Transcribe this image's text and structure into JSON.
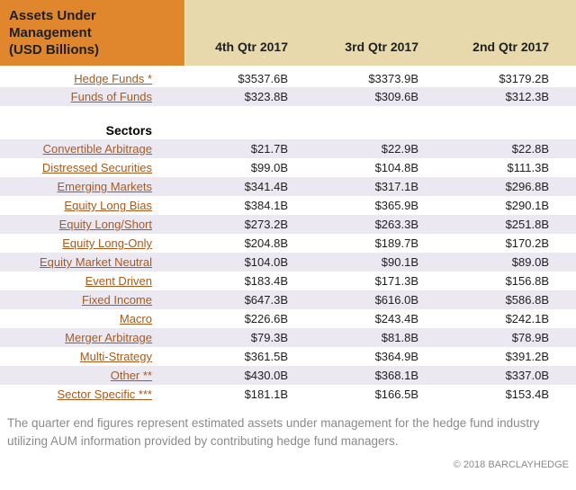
{
  "table": {
    "title": "Assets Under Management",
    "subtitle": "(USD Billions)",
    "columns": [
      "4th Qtr 2017",
      "3rd Qtr 2017",
      "2nd Qtr 2017"
    ],
    "rows": [
      {
        "type": "link",
        "label": "Hedge Funds *",
        "values": [
          "$3537.6B",
          "$3373.9B",
          "$3179.2B"
        ]
      },
      {
        "type": "link",
        "label": "Funds of Funds",
        "values": [
          "$323.8B",
          "$309.6B",
          "$312.3B"
        ]
      },
      {
        "type": "spacer"
      },
      {
        "type": "section",
        "label": "Sectors"
      },
      {
        "type": "link",
        "label": "Convertible Arbitrage",
        "values": [
          "$21.7B",
          "$22.9B",
          "$22.8B"
        ]
      },
      {
        "type": "link",
        "label": "Distressed Securities",
        "values": [
          "$99.0B",
          "$104.8B",
          "$111.3B"
        ]
      },
      {
        "type": "link",
        "label": "Emerging Markets",
        "values": [
          "$341.4B",
          "$317.1B",
          "$296.8B"
        ]
      },
      {
        "type": "link",
        "label": "Equity Long Bias",
        "values": [
          "$384.1B",
          "$365.9B",
          "$290.1B"
        ]
      },
      {
        "type": "link",
        "label": "Equity Long/Short",
        "values": [
          "$273.2B",
          "$263.3B",
          "$251.8B"
        ]
      },
      {
        "type": "link",
        "label": "Equity Long-Only",
        "values": [
          "$204.8B",
          "$189.7B",
          "$170.2B"
        ]
      },
      {
        "type": "link",
        "label": "Equity Market Neutral",
        "values": [
          "$104.0B",
          "$90.1B",
          "$89.0B"
        ]
      },
      {
        "type": "link",
        "label": "Event Driven",
        "values": [
          "$183.4B",
          "$171.3B",
          "$156.8B"
        ]
      },
      {
        "type": "link",
        "label": "Fixed Income",
        "values": [
          "$647.3B",
          "$616.0B",
          "$586.8B"
        ]
      },
      {
        "type": "link",
        "label": "Macro",
        "values": [
          "$226.6B",
          "$243.4B",
          "$242.1B"
        ]
      },
      {
        "type": "link",
        "label": "Merger Arbitrage",
        "values": [
          "$79.3B",
          "$81.8B",
          "$78.9B"
        ]
      },
      {
        "type": "link",
        "label": "Multi-Strategy",
        "values": [
          "$361.5B",
          "$364.9B",
          "$391.2B"
        ]
      },
      {
        "type": "link",
        "label": "Other **",
        "values": [
          "$430.0B",
          "$368.1B",
          "$337.0B"
        ]
      },
      {
        "type": "link",
        "label": "Sector Specific ***",
        "values": [
          "$181.1B",
          "$166.5B",
          "$153.4B"
        ]
      }
    ]
  },
  "footer": {
    "note": "The quarter end figures represent estimated assets under management for the hedge fund industry utilizing AUM information provided by contributing hedge fund managers.",
    "copyright": "© 2018 BARCLAYHEDGE"
  },
  "colors": {
    "header_orange": "#e0862d",
    "header_tan": "#e7d9ac",
    "row_stripe": "#ece8f1",
    "link": "#a85a1e",
    "footer_gray": "#8a8a8a"
  },
  "chart_data": {
    "type": "table",
    "title": "Assets Under Management (USD Billions)",
    "columns": [
      "4th Qtr 2017",
      "3rd Qtr 2017",
      "2nd Qtr 2017"
    ],
    "categories": [
      "Hedge Funds",
      "Funds of Funds",
      "Convertible Arbitrage",
      "Distressed Securities",
      "Emerging Markets",
      "Equity Long Bias",
      "Equity Long/Short",
      "Equity Long-Only",
      "Equity Market Neutral",
      "Event Driven",
      "Fixed Income",
      "Macro",
      "Merger Arbitrage",
      "Multi-Strategy",
      "Other",
      "Sector Specific"
    ],
    "series": [
      {
        "name": "4th Qtr 2017",
        "values": [
          3537.6,
          323.8,
          21.7,
          99.0,
          341.4,
          384.1,
          273.2,
          204.8,
          104.0,
          183.4,
          647.3,
          226.6,
          79.3,
          361.5,
          430.0,
          181.1
        ]
      },
      {
        "name": "3rd Qtr 2017",
        "values": [
          3373.9,
          309.6,
          22.9,
          104.8,
          317.1,
          365.9,
          263.3,
          189.7,
          90.1,
          171.3,
          616.0,
          243.4,
          81.8,
          364.9,
          368.1,
          166.5
        ]
      },
      {
        "name": "2nd Qtr 2017",
        "values": [
          3179.2,
          312.3,
          22.8,
          111.3,
          296.8,
          290.1,
          251.8,
          170.2,
          89.0,
          156.8,
          586.8,
          242.1,
          78.9,
          391.2,
          337.0,
          153.4
        ]
      }
    ],
    "unit": "USD Billions"
  }
}
